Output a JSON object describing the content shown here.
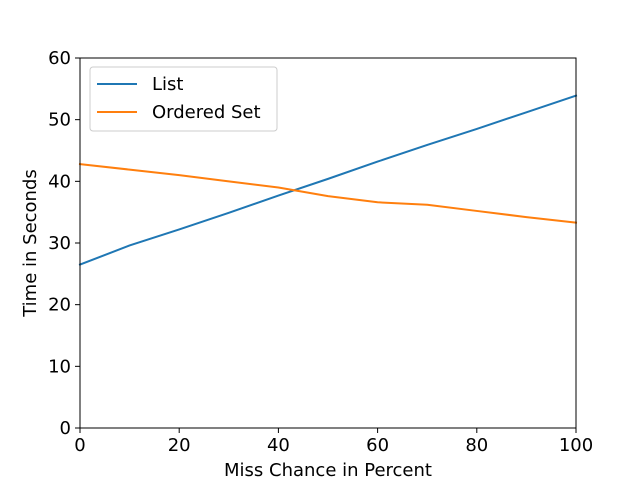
{
  "chart_data": {
    "type": "line",
    "title": "",
    "xlabel": "Miss Chance in Percent",
    "ylabel": "Time in Seconds",
    "xlim": [
      0,
      100
    ],
    "ylim": [
      0,
      60
    ],
    "x_ticks": [
      0,
      20,
      40,
      60,
      80,
      100
    ],
    "y_ticks": [
      0,
      10,
      20,
      30,
      40,
      50,
      60
    ],
    "x_tick_labels": [
      "0",
      "20",
      "40",
      "60",
      "80",
      "100"
    ],
    "y_tick_labels": [
      "0",
      "10",
      "20",
      "30",
      "40",
      "50",
      "60"
    ],
    "grid": false,
    "legend_position": "top-left",
    "x": [
      0,
      10,
      20,
      30,
      40,
      50,
      60,
      70,
      80,
      90,
      100
    ],
    "series": [
      {
        "name": "List",
        "color": "#1f77b4",
        "values": [
          26.5,
          29.6,
          32.2,
          34.9,
          37.7,
          40.4,
          43.2,
          45.9,
          48.5,
          51.2,
          53.9
        ]
      },
      {
        "name": "Ordered Set",
        "color": "#ff7f0e",
        "values": [
          42.8,
          41.9,
          41.0,
          40.0,
          39.0,
          37.6,
          36.6,
          36.2,
          35.2,
          34.2,
          33.3
        ]
      }
    ]
  }
}
